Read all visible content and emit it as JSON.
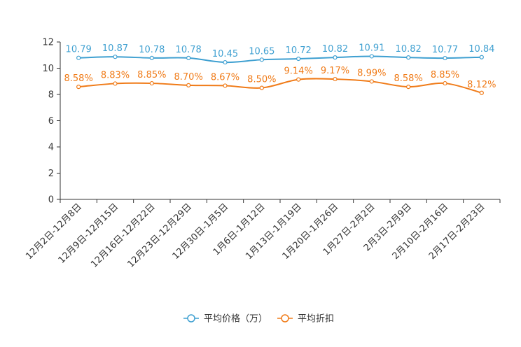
{
  "chart_data": {
    "type": "line",
    "categories": [
      "12月2日-12月8日",
      "12月9日-12月15日",
      "12月16日-12月22日",
      "12月23日-12月29日",
      "12月30日-1月5日",
      "1月6日-1月12日",
      "1月13日-1月19日",
      "1月20日-1月26日",
      "1月27日-2月2日",
      "2月3日-2月9日",
      "2月10日-2月16日",
      "2月17日-2月23日"
    ],
    "series": [
      {
        "name": "平均价格（万）",
        "color": "#3fa0d1",
        "values": [
          10.79,
          10.87,
          10.78,
          10.78,
          10.45,
          10.65,
          10.72,
          10.82,
          10.91,
          10.82,
          10.77,
          10.84
        ],
        "labels": [
          "10.79",
          "10.87",
          "10.78",
          "10.78",
          "10.45",
          "10.65",
          "10.72",
          "10.82",
          "10.91",
          "10.82",
          "10.77",
          "10.84"
        ]
      },
      {
        "name": "平均折扣",
        "color": "#f07b18",
        "values": [
          8.58,
          8.83,
          8.85,
          8.7,
          8.67,
          8.5,
          9.14,
          9.17,
          8.99,
          8.58,
          8.85,
          8.12
        ],
        "labels": [
          "8.58%",
          "8.83%",
          "8.85%",
          "8.70%",
          "8.67%",
          "8.50%",
          "9.14%",
          "9.17%",
          "8.99%",
          "8.58%",
          "8.85%",
          "8.12%"
        ]
      }
    ],
    "y_ticks": [
      "0",
      "2",
      "4",
      "6",
      "8",
      "10",
      "12"
    ],
    "ylim": [
      0,
      12
    ],
    "title": "",
    "xlabel": "",
    "ylabel": "",
    "legend_position": "bottom-center"
  }
}
